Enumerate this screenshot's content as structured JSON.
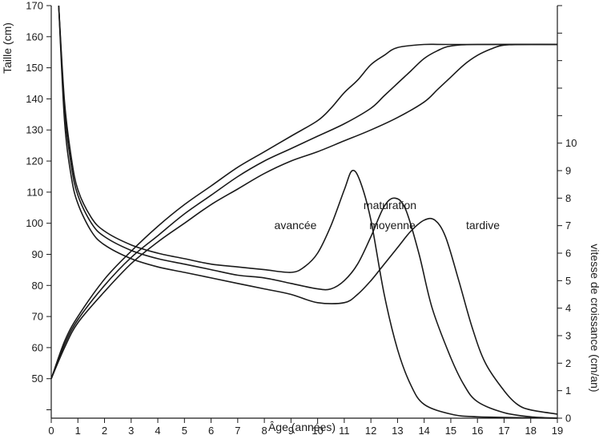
{
  "chart_data": {
    "type": "line",
    "xlabel": "Âge (années)",
    "ylabel": "Taille (cm)",
    "y2label": "vitesse de croissance (cm/an)",
    "xlim": [
      0,
      19
    ],
    "ylim": [
      37.3,
      170
    ],
    "y2lim": [
      0,
      15
    ],
    "x_ticks": [
      0,
      1,
      2,
      3,
      4,
      5,
      6,
      7,
      8,
      9,
      10,
      11,
      12,
      13,
      14,
      15,
      16,
      17,
      18,
      19
    ],
    "y_ticks": [
      50,
      60,
      70,
      80,
      90,
      100,
      110,
      120,
      130,
      140,
      150,
      160,
      170
    ],
    "y2_ticks": [
      0,
      1,
      2,
      3,
      4,
      5,
      6,
      7,
      8,
      9,
      10
    ],
    "annotations": {
      "title": "maturation",
      "early": "avancée",
      "average": "moyenne",
      "late": "tardive"
    },
    "height_series": [
      {
        "name": "avancée",
        "axis": "left",
        "points": [
          [
            0,
            50
          ],
          [
            0.5,
            62
          ],
          [
            1,
            70
          ],
          [
            2,
            82
          ],
          [
            3,
            91
          ],
          [
            4,
            99
          ],
          [
            5,
            106
          ],
          [
            6,
            112
          ],
          [
            7,
            118
          ],
          [
            8,
            123
          ],
          [
            9,
            128
          ],
          [
            10,
            133
          ],
          [
            10.5,
            137
          ],
          [
            11,
            142
          ],
          [
            11.5,
            146
          ],
          [
            12,
            151
          ],
          [
            12.5,
            154
          ],
          [
            13,
            156.5
          ],
          [
            14,
            157.5
          ],
          [
            15,
            157.5
          ],
          [
            19,
            157.5
          ]
        ]
      },
      {
        "name": "moyenne",
        "axis": "left",
        "points": [
          [
            0,
            50
          ],
          [
            0.5,
            61
          ],
          [
            1,
            69
          ],
          [
            2,
            80
          ],
          [
            3,
            89
          ],
          [
            4,
            96
          ],
          [
            5,
            103
          ],
          [
            6,
            109
          ],
          [
            7,
            115
          ],
          [
            8,
            120
          ],
          [
            9,
            124
          ],
          [
            10,
            128
          ],
          [
            11,
            132
          ],
          [
            12,
            137
          ],
          [
            12.5,
            141
          ],
          [
            13,
            145
          ],
          [
            13.5,
            149
          ],
          [
            14,
            153
          ],
          [
            14.5,
            155.5
          ],
          [
            15,
            157
          ],
          [
            16,
            157.5
          ],
          [
            19,
            157.5
          ]
        ]
      },
      {
        "name": "tardive",
        "axis": "left",
        "points": [
          [
            0,
            50
          ],
          [
            0.5,
            60
          ],
          [
            1,
            68
          ],
          [
            2,
            78
          ],
          [
            3,
            87
          ],
          [
            4,
            94
          ],
          [
            5,
            100
          ],
          [
            6,
            106
          ],
          [
            7,
            111
          ],
          [
            8,
            116
          ],
          [
            9,
            120
          ],
          [
            10,
            123
          ],
          [
            11,
            126.5
          ],
          [
            12,
            130
          ],
          [
            13,
            134
          ],
          [
            14,
            139
          ],
          [
            14.5,
            143
          ],
          [
            15,
            147
          ],
          [
            15.5,
            151
          ],
          [
            16,
            154
          ],
          [
            16.5,
            156
          ],
          [
            17,
            157.3
          ],
          [
            18,
            157.5
          ],
          [
            19,
            157.5
          ]
        ]
      }
    ],
    "velocity_series": [
      {
        "name": "avancée",
        "axis": "right",
        "points": [
          [
            0.28,
            15
          ],
          [
            0.5,
            11.5
          ],
          [
            0.75,
            9.5
          ],
          [
            1,
            8.3
          ],
          [
            1.5,
            7.3
          ],
          [
            2,
            6.8
          ],
          [
            3,
            6.3
          ],
          [
            4,
            6.0
          ],
          [
            5,
            5.8
          ],
          [
            6,
            5.6
          ],
          [
            7,
            5.5
          ],
          [
            8,
            5.4
          ],
          [
            9,
            5.3
          ],
          [
            9.5,
            5.5
          ],
          [
            10,
            6.0
          ],
          [
            10.5,
            7.0
          ],
          [
            11,
            8.3
          ],
          [
            11.3,
            9.0
          ],
          [
            11.6,
            8.6
          ],
          [
            12,
            7.2
          ],
          [
            12.5,
            4.5
          ],
          [
            13,
            2.5
          ],
          [
            13.5,
            1.2
          ],
          [
            14,
            0.5
          ],
          [
            15,
            0.15
          ],
          [
            16,
            0.05
          ],
          [
            19,
            0
          ]
        ]
      },
      {
        "name": "moyenne",
        "axis": "right",
        "points": [
          [
            0.28,
            15
          ],
          [
            0.5,
            11.2
          ],
          [
            0.75,
            9.2
          ],
          [
            1,
            8.1
          ],
          [
            1.5,
            7.1
          ],
          [
            2,
            6.6
          ],
          [
            3,
            6.1
          ],
          [
            4,
            5.8
          ],
          [
            5,
            5.6
          ],
          [
            6,
            5.4
          ],
          [
            7,
            5.2
          ],
          [
            8,
            5.1
          ],
          [
            9,
            4.9
          ],
          [
            10,
            4.7
          ],
          [
            10.5,
            4.7
          ],
          [
            11,
            5.0
          ],
          [
            11.5,
            5.6
          ],
          [
            12,
            6.6
          ],
          [
            12.5,
            7.7
          ],
          [
            12.9,
            8.0
          ],
          [
            13.3,
            7.6
          ],
          [
            13.8,
            6.0
          ],
          [
            14.3,
            4.0
          ],
          [
            15,
            2.2
          ],
          [
            15.5,
            1.2
          ],
          [
            16,
            0.6
          ],
          [
            17,
            0.2
          ],
          [
            18,
            0.05
          ],
          [
            19,
            0
          ]
        ]
      },
      {
        "name": "tardive",
        "axis": "right",
        "points": [
          [
            0.28,
            15
          ],
          [
            0.5,
            10.8
          ],
          [
            0.75,
            8.8
          ],
          [
            1,
            7.8
          ],
          [
            1.5,
            6.8
          ],
          [
            2,
            6.3
          ],
          [
            3,
            5.8
          ],
          [
            4,
            5.5
          ],
          [
            5,
            5.3
          ],
          [
            6,
            5.1
          ],
          [
            7,
            4.9
          ],
          [
            8,
            4.7
          ],
          [
            9,
            4.5
          ],
          [
            10,
            4.2
          ],
          [
            11,
            4.2
          ],
          [
            11.5,
            4.5
          ],
          [
            12,
            5.0
          ],
          [
            12.5,
            5.6
          ],
          [
            13,
            6.2
          ],
          [
            13.5,
            6.8
          ],
          [
            14,
            7.2
          ],
          [
            14.4,
            7.2
          ],
          [
            14.8,
            6.6
          ],
          [
            15.3,
            5.0
          ],
          [
            15.8,
            3.3
          ],
          [
            16.3,
            2.0
          ],
          [
            17,
            1.0
          ],
          [
            17.5,
            0.5
          ],
          [
            18,
            0.3
          ],
          [
            19,
            0.15
          ]
        ]
      }
    ]
  }
}
